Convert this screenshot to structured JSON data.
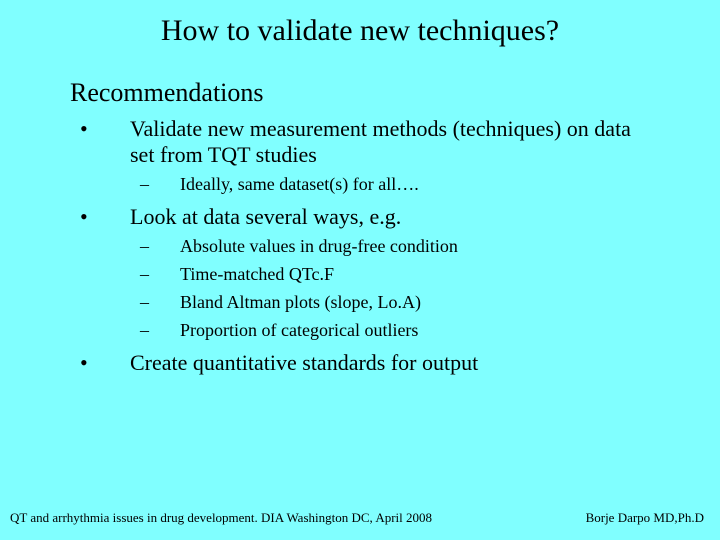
{
  "background_color": "#80ffff",
  "text_color": "#000000",
  "font_family": "Times New Roman",
  "title": "How to validate new techniques?",
  "subtitle": "Recommendations",
  "bullet_marker": "•",
  "dash_marker": "–",
  "bullets": {
    "b1_text": "Validate new measurement methods (techniques) on data set from TQT studies",
    "b1_sub1": "Ideally, same dataset(s) for all….",
    "b2_text": "Look at data several ways, e.g.",
    "b2_sub1": "Absolute values in drug-free condition",
    "b2_sub2": "Time-matched QTc.F",
    "b2_sub3": "Bland Altman plots (slope, Lo.A)",
    "b2_sub4": "Proportion of categorical outliers",
    "b3_text": "Create quantitative standards for output"
  },
  "footer": {
    "left": "QT and arrhythmia issues in drug development. DIA Washington DC, April 2008",
    "right": "Borje Darpo MD,Ph.D"
  },
  "fontsizes": {
    "title": 30,
    "subtitle": 26,
    "level1": 22,
    "level2": 18,
    "footer": 13
  }
}
